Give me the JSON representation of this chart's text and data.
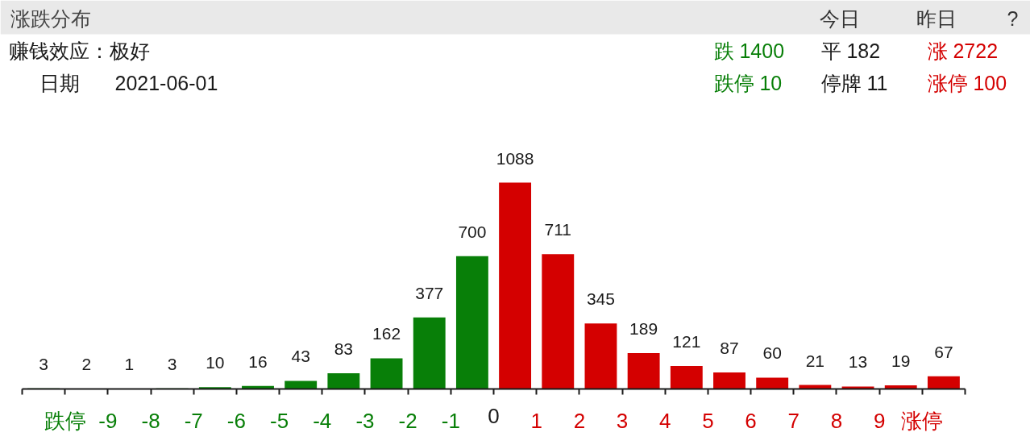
{
  "chart_data": {
    "type": "bar",
    "title": "涨跌分布",
    "x": [
      -10.5,
      -9.5,
      -8.5,
      -7.5,
      -6.5,
      -5.5,
      -4.5,
      -3.5,
      -2.5,
      -1.5,
      -0.5,
      0.5,
      1.5,
      2.5,
      3.5,
      4.5,
      5.5,
      6.5,
      7.5,
      8.5,
      9.5,
      10.5
    ],
    "values": [
      3,
      2,
      1,
      3,
      10,
      16,
      43,
      83,
      162,
      377,
      700,
      1088,
      711,
      345,
      189,
      121,
      87,
      60,
      21,
      13,
      19,
      67
    ],
    "colors": [
      "#087f08",
      "#087f08",
      "#087f08",
      "#087f08",
      "#087f08",
      "#087f08",
      "#087f08",
      "#087f08",
      "#087f08",
      "#087f08",
      "#087f08",
      "#d40000",
      "#d40000",
      "#d40000",
      "#d40000",
      "#d40000",
      "#d40000",
      "#d40000",
      "#d40000",
      "#d40000",
      "#d40000",
      "#d40000"
    ],
    "xlim": [
      -11,
      11
    ],
    "xticks": [
      {
        "value": -11,
        "label": null
      },
      {
        "value": -10,
        "label": "跌停"
      },
      -9,
      -8,
      -7,
      -6,
      -5,
      -4,
      -3,
      -2,
      -1,
      0,
      1,
      2,
      3,
      4,
      5,
      6,
      7,
      8,
      9,
      {
        "value": 10,
        "label": "涨停"
      },
      {
        "value": 11,
        "label": null
      }
    ],
    "data_labels": true,
    "tick_labels": "x",
    "annotations": [
      "今日",
      "昨日",
      "?",
      "赚钱效应：极好",
      "日期",
      "2021-06-01",
      "跌 1400",
      "平 182",
      "涨 2722",
      "跌停 10",
      "停牌 11",
      "涨停 100"
    ]
  }
}
